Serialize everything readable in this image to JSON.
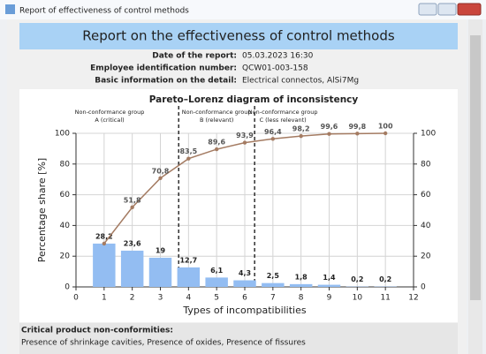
{
  "window": {
    "title": "Report of effectiveness of control methods"
  },
  "header": {
    "title": "Report on the effectiveness of control methods"
  },
  "info": [
    {
      "label": "Date of the report:",
      "value": "05.03.2023 16:30"
    },
    {
      "label": "Employee identification number:",
      "value": "QCW01-003-158"
    },
    {
      "label": "Basic information on the detail:",
      "value": "Electrical connectos, AlSi7Mg"
    }
  ],
  "chart_data": {
    "type": "pareto",
    "title": "Pareto–Lorenz diagram of inconsistency",
    "xlabel": "Types of incompatibilities",
    "ylabel": "Percentage share [%]",
    "x": [
      1,
      2,
      3,
      4,
      5,
      6,
      7,
      8,
      9,
      10,
      11
    ],
    "series": [
      {
        "type": "bar",
        "color": "#93bdf2",
        "values": [
          28.2,
          23.6,
          19,
          12.7,
          6.1,
          4.3,
          2.5,
          1.8,
          1.4,
          0.2,
          0.2
        ],
        "value_labels": [
          "28,2",
          "23,6",
          "19",
          "12,7",
          "6,1",
          "4,3",
          "2,5",
          "1,8",
          "1,4",
          "0,2",
          "0,2"
        ]
      },
      {
        "type": "line",
        "color": "#a47b62",
        "axis": "y2",
        "values": [
          28.2,
          51.8,
          70.8,
          83.5,
          89.6,
          93.9,
          96.4,
          98.2,
          99.6,
          99.8,
          100
        ],
        "value_labels": [
          null,
          "51,8",
          "70,8",
          "83,5",
          "89,6",
          "93,9",
          "96,4",
          "98,2",
          "99,6",
          "99,8",
          "100"
        ]
      }
    ],
    "groups": [
      {
        "lines": [
          "Non-conformance group",
          "A (critical)"
        ]
      },
      {
        "lines": [
          "Non-conformance group",
          "B (relevant)"
        ]
      },
      {
        "lines": [
          "Non-conformance group",
          "C (less relevant)"
        ]
      }
    ],
    "dividers": [
      3.65,
      6.35
    ],
    "xlim": [
      0,
      12
    ],
    "xticks": [
      0,
      1,
      2,
      3,
      4,
      5,
      6,
      7,
      8,
      9,
      10,
      11,
      12
    ],
    "ylim": [
      0,
      100
    ],
    "yticks": [
      0,
      20,
      40,
      60,
      80,
      100
    ],
    "y2lim": [
      0,
      100
    ],
    "y2ticks": [
      0,
      20,
      40,
      60,
      80,
      100
    ],
    "grid": true
  },
  "footer": {
    "title": "Critical product non-conformities:",
    "text": "Presence of shrinkage cavities, Presence of oxides, Presence of fissures"
  }
}
